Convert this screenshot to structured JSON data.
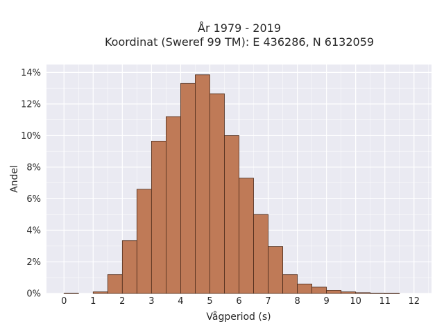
{
  "chart_data": {
    "type": "bar",
    "title_lines": [
      "År 1979 - 2019",
      "Koordinat (Sweref 99 TM): E 436286, N 6132059"
    ],
    "xlabel": "Vågperiod (s)",
    "ylabel": "Andel",
    "xlim": [
      -0.6,
      12.6
    ],
    "ylim": [
      0,
      14.5
    ],
    "x_ticks": [
      0,
      1,
      2,
      3,
      4,
      5,
      6,
      7,
      8,
      9,
      10,
      11,
      12
    ],
    "x_tick_labels": [
      "0",
      "1",
      "2",
      "3",
      "4",
      "5",
      "6",
      "7",
      "8",
      "9",
      "10",
      "11",
      "12"
    ],
    "y_ticks": [
      0,
      2,
      4,
      6,
      8,
      10,
      12,
      14
    ],
    "y_tick_labels": [
      "0%",
      "2%",
      "4%",
      "6%",
      "8%",
      "10%",
      "12%",
      "14%"
    ],
    "bin_width": 0.5,
    "bin_starts": [
      0,
      0.5,
      1,
      1.5,
      2,
      2.5,
      3,
      3.5,
      4,
      4.5,
      5,
      5.5,
      6,
      6.5,
      7,
      7.5,
      8,
      8.5,
      9,
      9.5,
      10,
      10.5,
      11,
      11.5
    ],
    "values": [
      0.02,
      0,
      0.1,
      1.2,
      3.35,
      6.6,
      9.65,
      11.2,
      13.3,
      13.85,
      12.65,
      10.0,
      7.3,
      5.0,
      2.97,
      1.2,
      0.6,
      0.4,
      0.2,
      0.1,
      0.05,
      0.02,
      0.01,
      0
    ],
    "grid": true,
    "bar_color": "#bf7a57",
    "bar_edge_color": "#4a2a1a",
    "plot_background": "#eaeaf2"
  }
}
